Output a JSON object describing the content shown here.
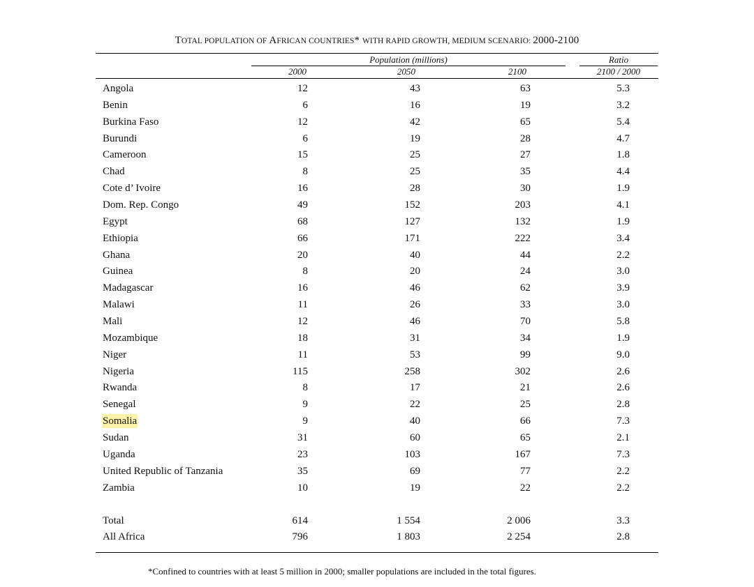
{
  "title": {
    "part1_cap": "T",
    "part1_small": "OTAL POPULATION OF ",
    "part2_cap": "A",
    "part2_small": "FRICAN COUNTRIES",
    "part3": "* ",
    "part4_small": "WITH RAPID GROWTH, MEDIUM SCENARIO: ",
    "years": "2000-2100"
  },
  "headers": {
    "population": "Population (millions)",
    "ratio": "Ratio",
    "y2000": "2000",
    "y2050": "2050",
    "y2100": "2100",
    "ratio_sub": "2100 / 2000"
  },
  "rows": [
    {
      "name": "Angola",
      "y2000": "12",
      "y2050": "43",
      "y2100": "63",
      "ratio": "5.3"
    },
    {
      "name": "Benin",
      "y2000": "6",
      "y2050": "16",
      "y2100": "19",
      "ratio": "3.2"
    },
    {
      "name": "Burkina Faso",
      "y2000": "12",
      "y2050": "42",
      "y2100": "65",
      "ratio": "5.4"
    },
    {
      "name": "Burundi",
      "y2000": "6",
      "y2050": "19",
      "y2100": "28",
      "ratio": "4.7"
    },
    {
      "name": "Cameroon",
      "y2000": "15",
      "y2050": "25",
      "y2100": "27",
      "ratio": "1.8"
    },
    {
      "name": "Chad",
      "y2000": "8",
      "y2050": "25",
      "y2100": "35",
      "ratio": "4.4"
    },
    {
      "name": "Cote d’ Ivoire",
      "y2000": "16",
      "y2050": "28",
      "y2100": "30",
      "ratio": "1.9"
    },
    {
      "name": "Dom. Rep. Congo",
      "y2000": "49",
      "y2050": "152",
      "y2100": "203",
      "ratio": "4.1"
    },
    {
      "name": "Egypt",
      "y2000": "68",
      "y2050": "127",
      "y2100": "132",
      "ratio": "1.9"
    },
    {
      "name": "Ethiopia",
      "y2000": "66",
      "y2050": "171",
      "y2100": "222",
      "ratio": "3.4"
    },
    {
      "name": "Ghana",
      "y2000": "20",
      "y2050": "40",
      "y2100": "44",
      "ratio": "2.2"
    },
    {
      "name": "Guinea",
      "y2000": "8",
      "y2050": "20",
      "y2100": "24",
      "ratio": "3.0"
    },
    {
      "name": "Madagascar",
      "y2000": "16",
      "y2050": "46",
      "y2100": "62",
      "ratio": "3.9"
    },
    {
      "name": "Malawi",
      "y2000": "11",
      "y2050": "26",
      "y2100": "33",
      "ratio": "3.0"
    },
    {
      "name": "Mali",
      "y2000": "12",
      "y2050": "46",
      "y2100": "70",
      "ratio": "5.8"
    },
    {
      "name": "Mozambique",
      "y2000": "18",
      "y2050": "31",
      "y2100": "34",
      "ratio": "1.9"
    },
    {
      "name": "Niger",
      "y2000": "11",
      "y2050": "53",
      "y2100": "99",
      "ratio": "9.0"
    },
    {
      "name": "Nigeria",
      "y2000": "115",
      "y2050": "258",
      "y2100": "302",
      "ratio": "2.6"
    },
    {
      "name": "Rwanda",
      "y2000": "8",
      "y2050": "17",
      "y2100": "21",
      "ratio": "2.6"
    },
    {
      "name": "Senegal",
      "y2000": "9",
      "y2050": "22",
      "y2100": "25",
      "ratio": "2.8"
    },
    {
      "name": "Somalia",
      "y2000": "9",
      "y2050": "40",
      "y2100": "66",
      "ratio": "7.3"
    },
    {
      "name": "Sudan",
      "y2000": "31",
      "y2050": "60",
      "y2100": "65",
      "ratio": "2.1"
    },
    {
      "name": "Uganda",
      "y2000": "23",
      "y2050": "103",
      "y2100": "167",
      "ratio": "7.3"
    },
    {
      "name": "United Republic of Tanzania",
      "y2000": "35",
      "y2050": "69",
      "y2100": "77",
      "ratio": "2.2"
    },
    {
      "name": "Zambia",
      "y2000": "10",
      "y2050": "19",
      "y2100": "22",
      "ratio": "2.2"
    }
  ],
  "totals": [
    {
      "name": "Total",
      "y2000": "614",
      "y2050": "1 554",
      "y2100": "2 006",
      "ratio": "3.3"
    },
    {
      "name": "All Africa",
      "y2000": "796",
      "y2050": "1 803",
      "y2100": "2 254",
      "ratio": "2.8"
    }
  ],
  "highlight_color": "#fbf3a8",
  "footnote": "*Confined to countries with at least 5 million in 2000; smaller populations are included in the total figures."
}
